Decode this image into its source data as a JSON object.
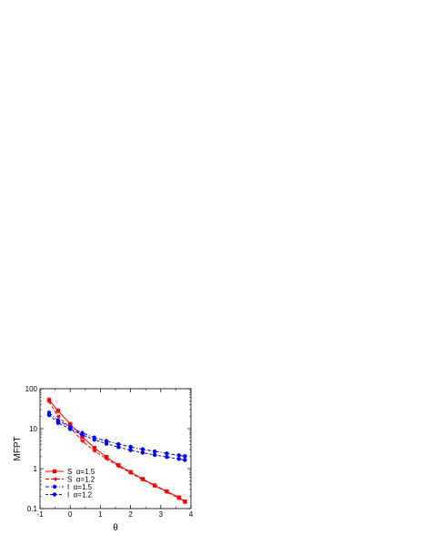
{
  "chart_data": {
    "type": "line",
    "title": "",
    "xlabel": "θ",
    "ylabel": "MFPT",
    "xlim": [
      -1,
      4
    ],
    "ylim": [
      0.1,
      100
    ],
    "yscale": "log",
    "grid": false,
    "x_ticks": [
      "-1",
      "0",
      "1",
      "2",
      "3",
      "4"
    ],
    "y_ticks": [
      "0.1",
      "1",
      "10",
      "100"
    ],
    "legend_position": "bottom-left",
    "series": [
      {
        "name": "S  α=1.5",
        "color": "#ff0000",
        "line_style": "solid",
        "marker": "square",
        "x": [
          -0.7,
          -0.4,
          0.0,
          0.4,
          0.8,
          1.2,
          1.6,
          2.0,
          2.4,
          2.8,
          3.2,
          3.6,
          3.8
        ],
        "y": [
          52,
          28,
          13,
          6.3,
          3.3,
          1.95,
          1.22,
          0.82,
          0.55,
          0.38,
          0.27,
          0.19,
          0.15
        ],
        "y_low": [
          44,
          24,
          11,
          5.6,
          2.9,
          1.75,
          1.1,
          0.74,
          0.5,
          0.34,
          0.24,
          0.17,
          0.135
        ],
        "y_high": [
          62,
          33,
          15,
          7.1,
          3.7,
          2.2,
          1.36,
          0.92,
          0.61,
          0.42,
          0.3,
          0.21,
          0.165
        ]
      },
      {
        "name": "S  α=1.2",
        "color": "#ff0000",
        "line_style": "dashed",
        "marker": "triangle-left",
        "x": [
          -0.7,
          -0.4,
          0.0,
          0.4,
          0.8,
          1.2,
          1.6,
          2.0,
          2.4,
          2.8,
          3.2,
          3.6,
          3.8
        ],
        "y": [
          48,
          20,
          10.5,
          4.9,
          2.8,
          1.75,
          1.15,
          0.78,
          0.53,
          0.37,
          0.26,
          0.18,
          0.145
        ],
        "y_low": [
          41,
          17,
          9.2,
          4.4,
          2.5,
          1.58,
          1.04,
          0.7,
          0.48,
          0.33,
          0.235,
          0.163,
          0.13
        ],
        "y_high": [
          56,
          23,
          12,
          5.5,
          3.1,
          1.95,
          1.27,
          0.86,
          0.58,
          0.41,
          0.285,
          0.198,
          0.16
        ]
      },
      {
        "name": "I  α=1.5",
        "color": "#0000ff",
        "line_style": "dashdot",
        "marker": "circle",
        "x": [
          -0.7,
          -0.4,
          0.0,
          0.4,
          0.8,
          1.2,
          1.6,
          2.0,
          2.4,
          2.8,
          3.2,
          3.6,
          3.8
        ],
        "y": [
          25,
          16,
          11,
          7.8,
          6.0,
          4.9,
          4.1,
          3.5,
          3.05,
          2.7,
          2.4,
          2.15,
          2.05
        ],
        "y_low": [
          21,
          14,
          9.6,
          6.9,
          5.4,
          4.4,
          3.7,
          3.15,
          2.75,
          2.45,
          2.18,
          1.96,
          1.86
        ],
        "y_high": [
          29,
          18.5,
          12.5,
          8.8,
          6.7,
          5.5,
          4.6,
          3.9,
          3.4,
          3.0,
          2.65,
          2.38,
          2.26
        ]
      },
      {
        "name": "I  α=1.2",
        "color": "#0000ff",
        "line_style": "dash",
        "marker": "circle",
        "x": [
          -0.7,
          -0.4,
          0.0,
          0.4,
          0.8,
          1.2,
          1.6,
          2.0,
          2.4,
          2.8,
          3.2,
          3.6,
          3.8
        ],
        "y": [
          22,
          14,
          9.8,
          7.0,
          5.3,
          4.2,
          3.45,
          2.9,
          2.5,
          2.2,
          1.95,
          1.75,
          1.65
        ],
        "y_low": [
          19,
          12,
          8.6,
          6.2,
          4.75,
          3.8,
          3.1,
          2.6,
          2.25,
          1.98,
          1.76,
          1.58,
          1.5
        ],
        "y_high": [
          25.5,
          16,
          11,
          7.8,
          5.9,
          4.65,
          3.8,
          3.2,
          2.75,
          2.42,
          2.15,
          1.93,
          1.82
        ]
      }
    ]
  }
}
